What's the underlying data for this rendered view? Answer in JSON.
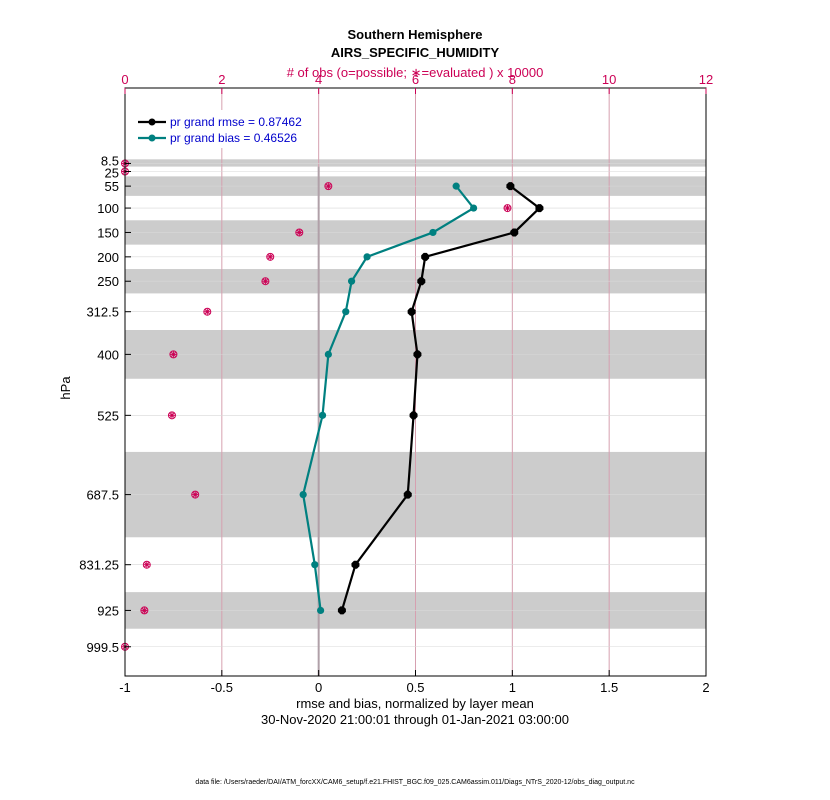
{
  "chart_data": {
    "type": "line",
    "title": "Southern Hemisphere",
    "subtitle": "AIRS_SPECIFIC_HUMIDITY",
    "top_axis_label": "# of obs (o=possible; ∗=evaluated ) x 10000",
    "xlabel": "rmse and bias, normalized by layer mean",
    "date_range": "30-Nov-2020 21:00:01 through 01-Jan-2021 03:00:00",
    "ylabel": "hPa",
    "footer": "data file: /Users/raeder/DAI/ATM_forcXX/CAM6_setup/f.e21.FHIST_BGC.f09_025.CAM6assim.011/Diags_NTrS_2020-12/obs_diag_output.nc",
    "xlim": [
      -1,
      2
    ],
    "x_ticks": [
      -1,
      -0.5,
      0,
      0.5,
      1,
      1.5,
      2
    ],
    "x_tick_labels": [
      "-1",
      "-0.5",
      "0",
      "0.5",
      "1",
      "1.5",
      "2"
    ],
    "top_xlim": [
      0,
      12
    ],
    "top_ticks": [
      0,
      2,
      4,
      6,
      8,
      10,
      12
    ],
    "top_tick_labels": [
      "0",
      "2",
      "4",
      "6",
      "8",
      "10",
      "12"
    ],
    "y_tick_labels": [
      "8.5",
      "25",
      "55",
      "100",
      "150",
      "200",
      "250",
      "312.5",
      "400",
      "525",
      "687.5",
      "831.25",
      "925",
      "999.5"
    ],
    "levels": [
      8.5,
      25,
      55,
      100,
      150,
      200,
      250,
      312.5,
      400,
      525,
      687.5,
      831.25,
      925,
      999.5
    ],
    "layer_bounds": [
      0,
      15,
      35,
      75,
      125,
      175,
      225,
      275,
      350,
      450,
      600,
      775,
      887.5,
      962.5,
      1037.5
    ],
    "legend_position": "top-left",
    "grid": true,
    "series": [
      {
        "name": "pr grand rmse = 0.87462",
        "color": "#000000",
        "levels": [
          55,
          100,
          150,
          200,
          250,
          312.5,
          400,
          525,
          687.5,
          831.25,
          925
        ],
        "values": [
          0.99,
          1.14,
          1.01,
          0.55,
          0.53,
          0.48,
          0.51,
          0.49,
          0.46,
          0.19,
          0.12
        ]
      },
      {
        "name": "pr grand bias = 0.46526",
        "color": "#008080",
        "levels": [
          55,
          100,
          150,
          200,
          250,
          312.5,
          400,
          525,
          687.5,
          831.25,
          925
        ],
        "values": [
          0.71,
          0.8,
          0.59,
          0.25,
          0.17,
          0.14,
          0.05,
          0.02,
          -0.08,
          -0.02,
          0.01
        ]
      }
    ],
    "obs_count_color": "#cc0055",
    "obs_counts": {
      "levels": [
        8.5,
        25,
        55,
        100,
        150,
        200,
        250,
        312.5,
        400,
        525,
        687.5,
        831.25,
        925,
        999.5
      ],
      "possible": [
        0.0,
        0.0,
        4.2,
        7.9,
        3.6,
        3.0,
        2.9,
        1.7,
        1.0,
        0.97,
        1.45,
        0.45,
        0.4,
        0.0
      ],
      "evaluated": [
        0.0,
        0.0,
        4.2,
        7.9,
        3.6,
        3.0,
        2.9,
        1.7,
        1.0,
        0.97,
        1.45,
        0.45,
        0.4,
        0.0
      ]
    }
  }
}
